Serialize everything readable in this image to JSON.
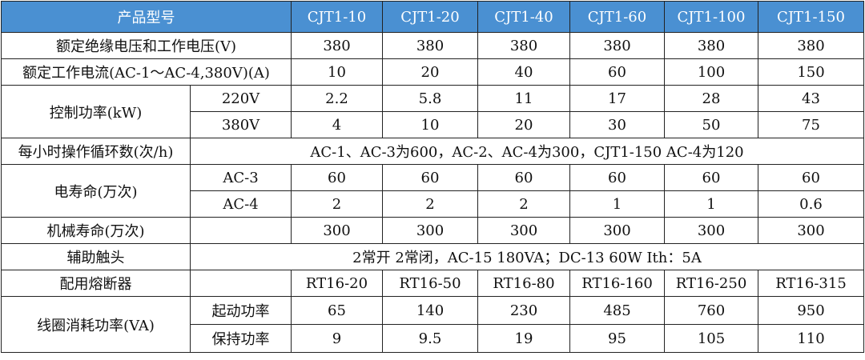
{
  "header": {
    "label": "产品型号",
    "models": [
      "CJT1-10",
      "CJT1-20",
      "CJT1-40",
      "CJT1-60",
      "CJT1-100",
      "CJT1-150"
    ]
  },
  "accent_color": "#4a90d2",
  "rows": {
    "rated_voltage": {
      "label": "额定绝缘电压和工作电压(V)",
      "values": [
        "380",
        "380",
        "380",
        "380",
        "380",
        "380"
      ]
    },
    "rated_current": {
      "label": "额定工作电流(AC-1～AC-4,380V)(A)",
      "values": [
        "10",
        "20",
        "40",
        "60",
        "100",
        "150"
      ]
    },
    "control_power": {
      "label": "控制功率(kW)",
      "sub": [
        {
          "label": "220V",
          "values": [
            "2.2",
            "5.8",
            "11",
            "17",
            "28",
            "43"
          ]
        },
        {
          "label": "380V",
          "values": [
            "4",
            "10",
            "20",
            "30",
            "50",
            "75"
          ]
        }
      ]
    },
    "ops_per_hour": {
      "label": "每小时操作循环数(次/h)",
      "value": "AC-1、AC-3为600，AC-2、AC-4为300，CJT1-150  AC-4为120"
    },
    "electrical_life": {
      "label": "电寿命(万次)",
      "sub": [
        {
          "label": "AC-3",
          "values": [
            "60",
            "60",
            "60",
            "60",
            "60",
            "60"
          ]
        },
        {
          "label": "AC-4",
          "values": [
            "2",
            "2",
            "2",
            "1",
            "1",
            "0.6"
          ]
        }
      ]
    },
    "mechanical_life": {
      "label": "机械寿命(万次)",
      "values": [
        "300",
        "300",
        "300",
        "300",
        "300",
        "300"
      ]
    },
    "aux_contacts": {
      "label": "辅助触头",
      "value": "2常开  2常闭，AC-15   180VA；DC-13  60W  Ith：5A"
    },
    "fuse": {
      "label": "配用熔断器",
      "values": [
        "RT16-20",
        "RT16-50",
        "RT16-80",
        "RT16-160",
        "RT16-250",
        "RT16-315"
      ]
    },
    "coil_power": {
      "label": "线圈消耗功率(VA)",
      "sub": [
        {
          "label": "起动功率",
          "values": [
            "65",
            "140",
            "230",
            "485",
            "760",
            "950"
          ]
        },
        {
          "label": "保持功率",
          "values": [
            "9",
            "9.5",
            "19",
            "95",
            "105",
            "110"
          ]
        }
      ]
    }
  }
}
